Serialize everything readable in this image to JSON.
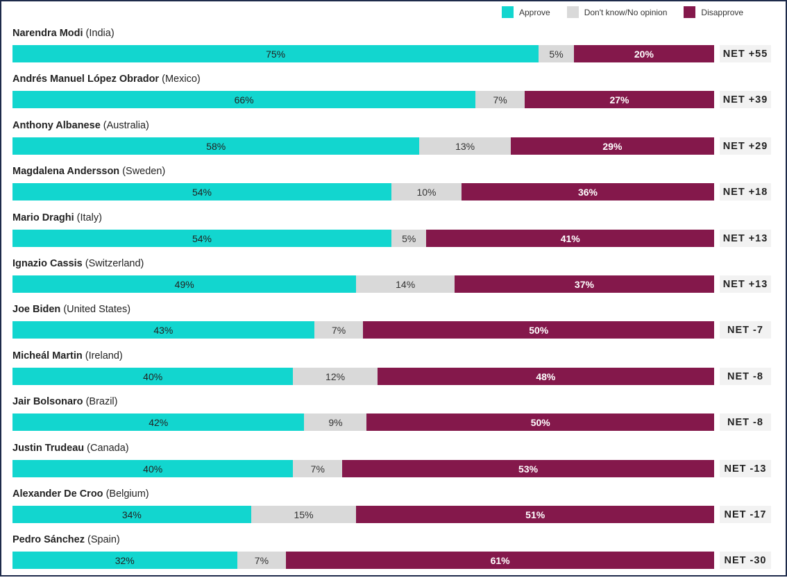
{
  "colors": {
    "approve": "#12d6cf",
    "dont_know": "#d9d9d9",
    "disapprove": "#84184b"
  },
  "legend": [
    {
      "label": "Approve",
      "color": "#12d6cf"
    },
    {
      "label": "Don't know/No opinion",
      "color": "#d9d9d9"
    },
    {
      "label": "Disapprove",
      "color": "#84184b"
    }
  ],
  "chart_data": {
    "type": "bar",
    "orientation": "horizontal-stacked-100",
    "legend_position": "top-right",
    "series": [
      {
        "name": "Approve",
        "values": [
          75,
          66,
          58,
          54,
          54,
          49,
          43,
          40,
          42,
          40,
          34,
          32
        ]
      },
      {
        "name": "Don't know/No opinion",
        "values": [
          5,
          7,
          13,
          10,
          5,
          14,
          7,
          12,
          9,
          7,
          15,
          7
        ]
      },
      {
        "name": "Disapprove",
        "values": [
          20,
          27,
          29,
          36,
          41,
          37,
          50,
          48,
          50,
          53,
          51,
          61
        ]
      }
    ],
    "categories": [
      "Narendra Modi (India)",
      "Andrés Manuel López Obrador (Mexico)",
      "Anthony Albanese (Australia)",
      "Magdalena Andersson (Sweden)",
      "Mario Draghi (Italy)",
      "Ignazio Cassis (Switzerland)",
      "Joe Biden (United States)",
      "Micheál Martin (Ireland)",
      "Jair Bolsonaro (Brazil)",
      "Justin Trudeau (Canada)",
      "Alexander De Croo (Belgium)",
      "Pedro Sánchez (Spain)"
    ],
    "rows": [
      {
        "name": "Narendra Modi",
        "country": "(India)",
        "approve": 75,
        "dont_know": 5,
        "disapprove": 20,
        "approve_label": "75%",
        "dont_know_label": "5%",
        "disapprove_label": "20%",
        "net": "NET +55"
      },
      {
        "name": "Andrés Manuel López Obrador",
        "country": "(Mexico)",
        "approve": 66,
        "dont_know": 7,
        "disapprove": 27,
        "approve_label": "66%",
        "dont_know_label": "7%",
        "disapprove_label": "27%",
        "net": "NET +39"
      },
      {
        "name": "Anthony Albanese",
        "country": "(Australia)",
        "approve": 58,
        "dont_know": 13,
        "disapprove": 29,
        "approve_label": "58%",
        "dont_know_label": "13%",
        "disapprove_label": "29%",
        "net": "NET +29"
      },
      {
        "name": "Magdalena Andersson",
        "country": "(Sweden)",
        "approve": 54,
        "dont_know": 10,
        "disapprove": 36,
        "approve_label": "54%",
        "dont_know_label": "10%",
        "disapprove_label": "36%",
        "net": "NET +18"
      },
      {
        "name": "Mario Draghi",
        "country": "(Italy)",
        "approve": 54,
        "dont_know": 5,
        "disapprove": 41,
        "approve_label": "54%",
        "dont_know_label": "5%",
        "disapprove_label": "41%",
        "net": "NET +13"
      },
      {
        "name": "Ignazio Cassis",
        "country": "(Switzerland)",
        "approve": 49,
        "dont_know": 14,
        "disapprove": 37,
        "approve_label": "49%",
        "dont_know_label": "14%",
        "disapprove_label": "37%",
        "net": "NET +13"
      },
      {
        "name": "Joe Biden",
        "country": "(United States)",
        "approve": 43,
        "dont_know": 7,
        "disapprove": 50,
        "approve_label": "43%",
        "dont_know_label": "7%",
        "disapprove_label": "50%",
        "net": "NET -7"
      },
      {
        "name": "Micheál Martin",
        "country": "(Ireland)",
        "approve": 40,
        "dont_know": 12,
        "disapprove": 48,
        "approve_label": "40%",
        "dont_know_label": "12%",
        "disapprove_label": "48%",
        "net": "NET -8"
      },
      {
        "name": "Jair Bolsonaro",
        "country": "(Brazil)",
        "approve": 42,
        "dont_know": 9,
        "disapprove": 50,
        "approve_label": "42%",
        "dont_know_label": "9%",
        "disapprove_label": "50%",
        "net": "NET -8"
      },
      {
        "name": "Justin Trudeau",
        "country": "(Canada)",
        "approve": 40,
        "dont_know": 7,
        "disapprove": 53,
        "approve_label": "40%",
        "dont_know_label": "7%",
        "disapprove_label": "53%",
        "net": "NET -13"
      },
      {
        "name": "Alexander De Croo",
        "country": "(Belgium)",
        "approve": 34,
        "dont_know": 15,
        "disapprove": 51,
        "approve_label": "34%",
        "dont_know_label": "15%",
        "disapprove_label": "51%",
        "net": "NET -17"
      },
      {
        "name": "Pedro Sánchez",
        "country": "(Spain)",
        "approve": 32,
        "dont_know": 7,
        "disapprove": 61,
        "approve_label": "32%",
        "dont_know_label": "7%",
        "disapprove_label": "61%",
        "net": "NET -30"
      }
    ]
  }
}
